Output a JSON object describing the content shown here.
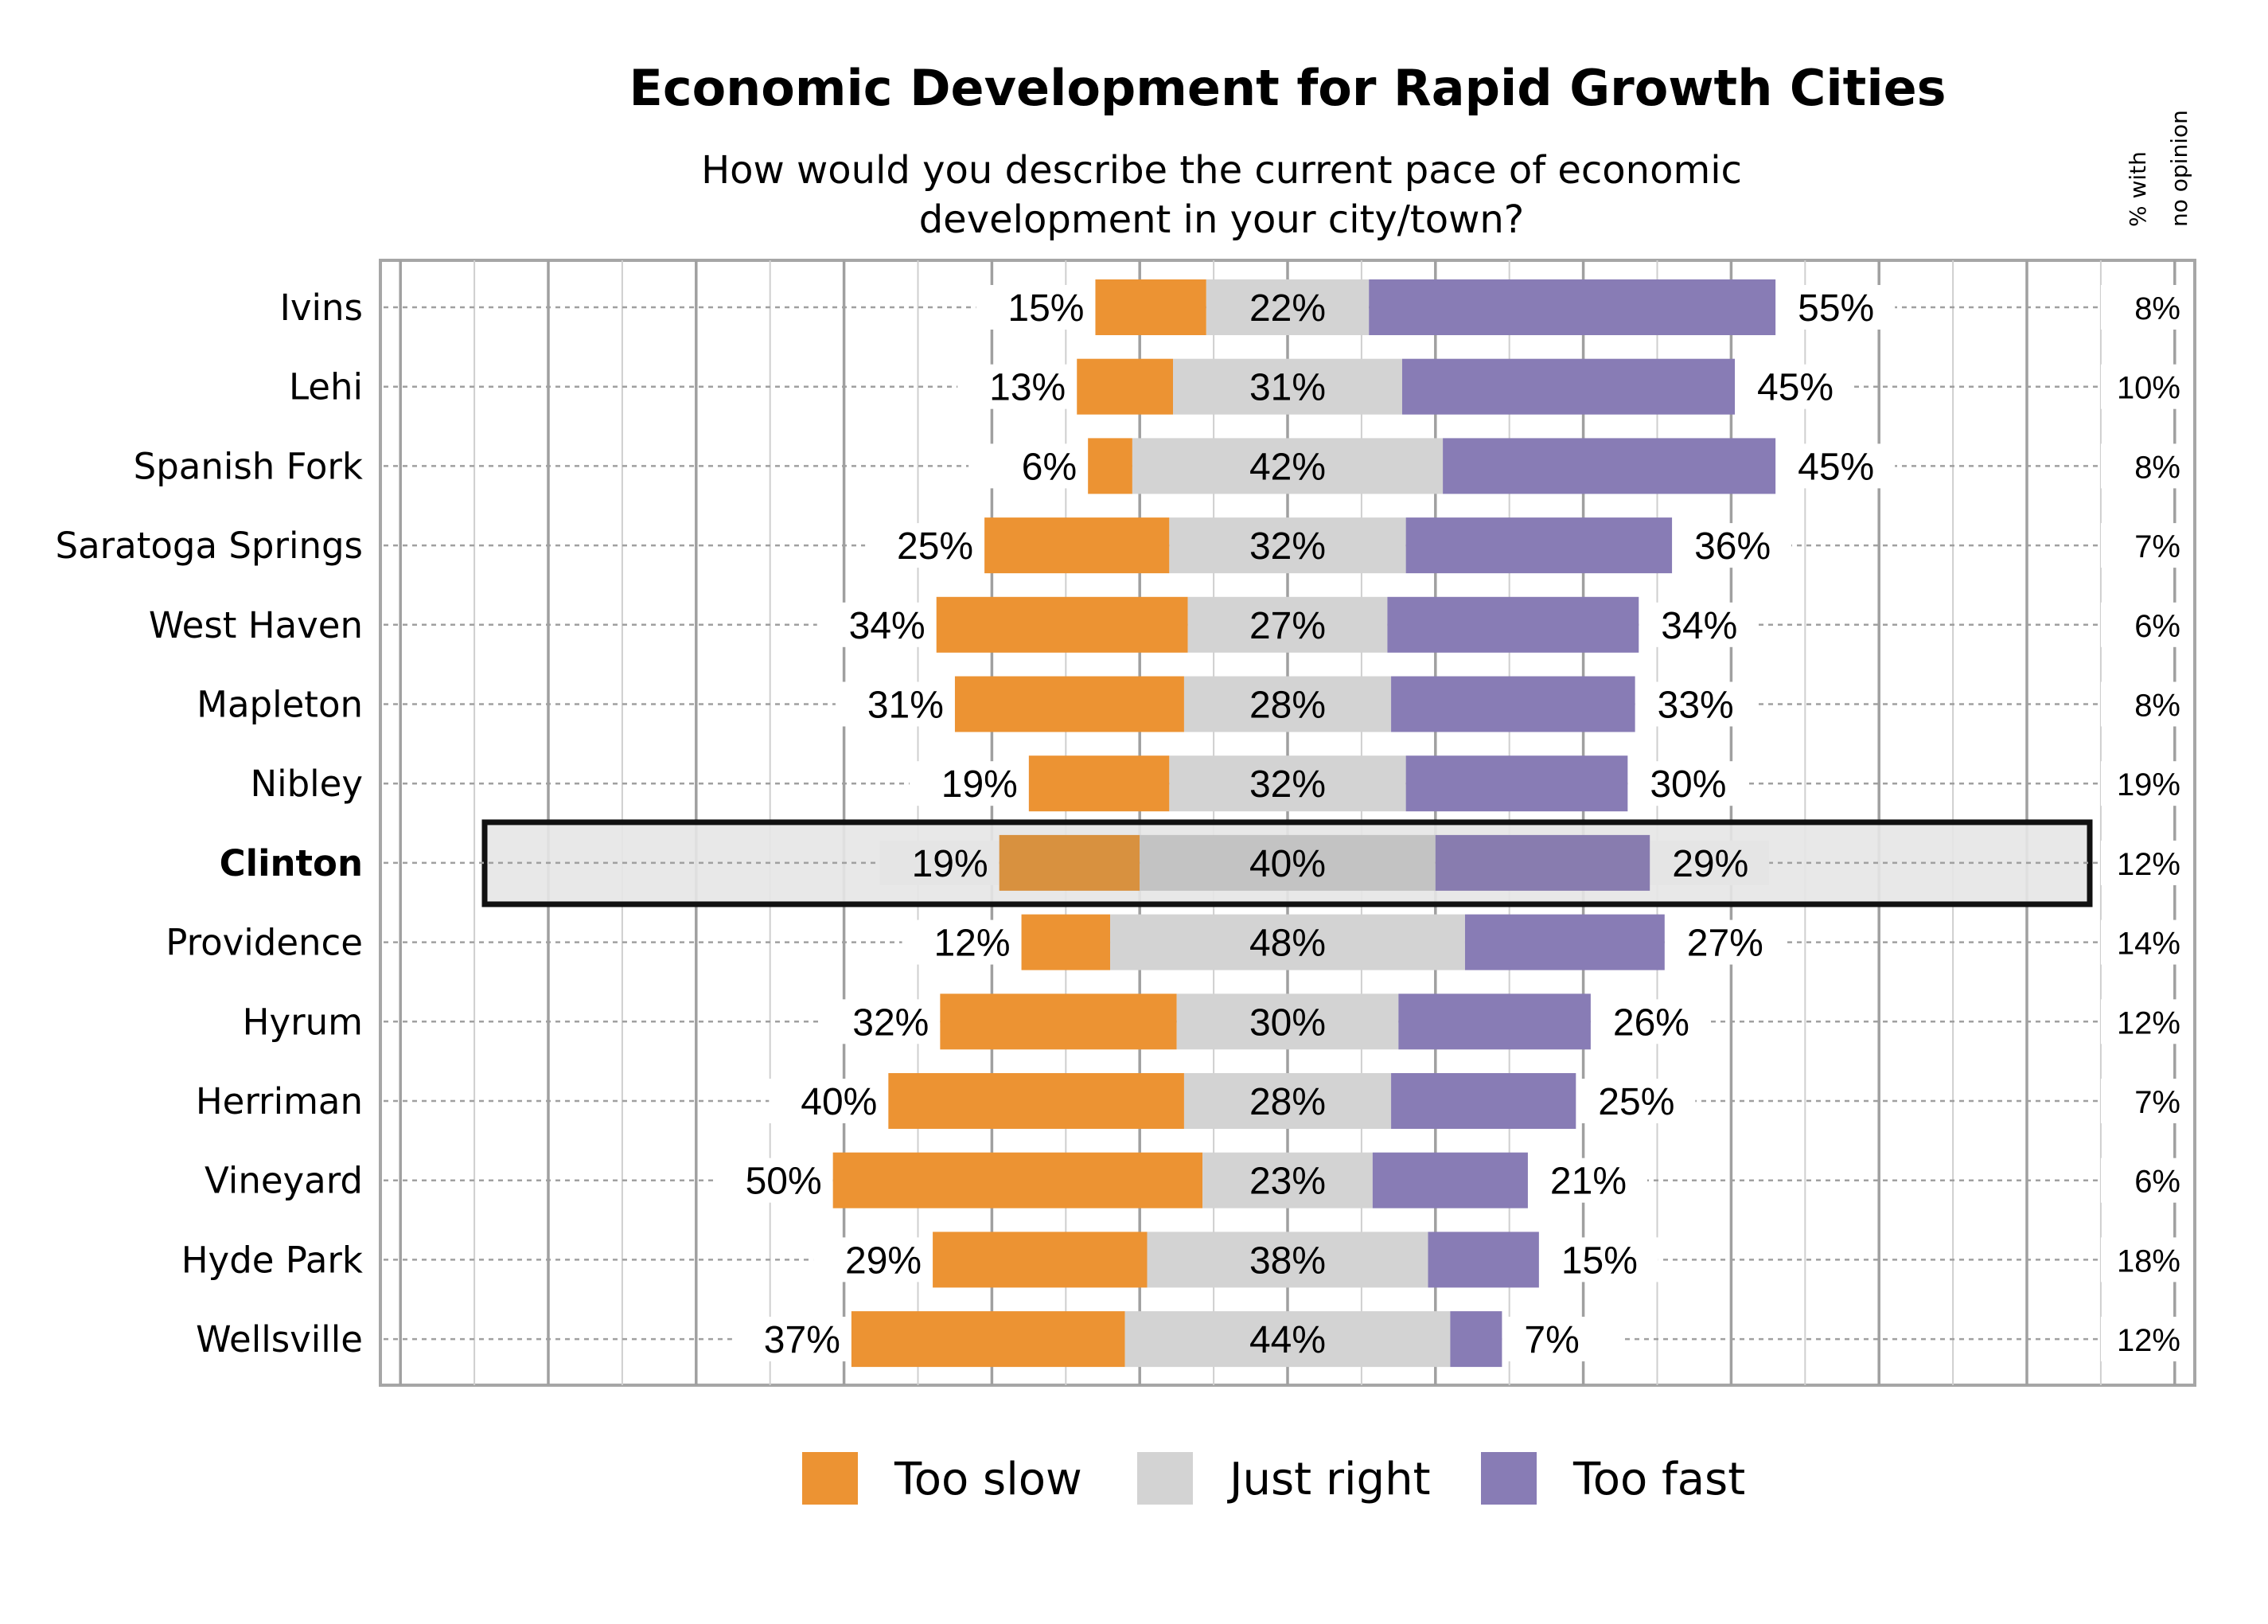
{
  "chart_data": {
    "type": "bar",
    "orientation": "horizontal",
    "stacked": "diverging",
    "title": "Economic Development for Rapid Growth Cities",
    "subtitle_lines": [
      "How would you describe the current pace of economic",
      "development in your city/town?"
    ],
    "side_header_lines": [
      "% with",
      "no opinion"
    ],
    "grid": true,
    "legend_position": "bottom",
    "highlighted_category": "Clinton",
    "categories": [
      "Ivins",
      "Lehi",
      "Spanish Fork",
      "Saratoga Springs",
      "West Haven",
      "Mapleton",
      "Nibley",
      "Clinton",
      "Providence",
      "Hyrum",
      "Herriman",
      "Vineyard",
      "Hyde Park",
      "Wellsville"
    ],
    "series": [
      {
        "name": "Too slow",
        "color": "#EC9333",
        "values": [
          15,
          13,
          6,
          25,
          34,
          31,
          19,
          19,
          12,
          32,
          40,
          50,
          29,
          37
        ]
      },
      {
        "name": "Just right",
        "color": "#D3D3D3",
        "values": [
          22,
          31,
          42,
          32,
          27,
          28,
          32,
          40,
          48,
          30,
          28,
          23,
          38,
          44
        ]
      },
      {
        "name": "Too fast",
        "color": "#887CB5",
        "values": [
          55,
          45,
          45,
          36,
          34,
          33,
          30,
          29,
          27,
          26,
          25,
          21,
          15,
          7
        ]
      }
    ],
    "no_opinion": [
      8,
      10,
      8,
      7,
      6,
      8,
      19,
      12,
      14,
      12,
      7,
      6,
      18,
      12
    ],
    "value_suffix": "%",
    "highlight_colors": {
      "Too slow": "#D8913F",
      "Just right": "#C3C3C3",
      "Too fast": "#887CAF",
      "background": "#E5E5E5"
    }
  }
}
